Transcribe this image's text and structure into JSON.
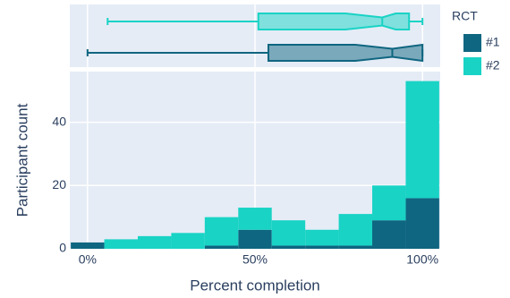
{
  "chart_data": {
    "type": "histogram",
    "x_label": "Percent completion",
    "y_label": "Participant count",
    "legend_title": "RCT",
    "legend_position": "right",
    "bins": [
      -5,
      5,
      15,
      25,
      35,
      45,
      55,
      65,
      75,
      85,
      95,
      105
    ],
    "series": [
      {
        "name": "#1",
        "color": "#0f6680",
        "values": [
          2,
          0,
          0,
          0,
          1,
          6,
          1,
          1,
          1,
          9,
          16
        ],
        "box": {
          "min": 0,
          "q1": 54,
          "notch": [
            80,
            100
          ],
          "median": 91,
          "q3": 100,
          "max": 100
        }
      },
      {
        "name": "#2",
        "color": "#19d3c5",
        "values": [
          0,
          3,
          4,
          5,
          9,
          7,
          8,
          5,
          10,
          11,
          37
        ],
        "box": {
          "min": 6,
          "q1": 51,
          "notch": [
            77,
            92
          ],
          "median": 88,
          "q3": 96,
          "max": 100
        }
      }
    ],
    "xlim": [
      -5.3,
      105.3
    ],
    "xticks": [
      {
        "value": 0,
        "label": "0%"
      },
      {
        "value": 50,
        "label": "50%"
      },
      {
        "value": 100,
        "label": "100%"
      }
    ],
    "ylim": [
      0,
      56
    ],
    "yticks": [
      0,
      20,
      40
    ],
    "grid": true
  }
}
